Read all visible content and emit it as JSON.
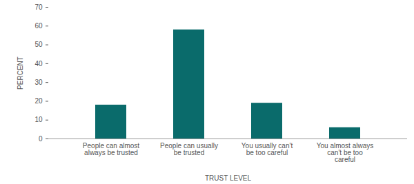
{
  "chart_data": {
    "type": "bar",
    "categories": [
      "People can almost always be trusted",
      "People can usually be trusted",
      "You usually can't be too careful",
      "You almost always can't be too careful"
    ],
    "values": [
      18,
      58,
      19,
      6
    ],
    "color": "#0a6b6b",
    "xlabel": "TRUST LEVEL",
    "ylabel": "PERCENT",
    "ylim": [
      0,
      70
    ],
    "yticks": [
      0,
      10,
      20,
      30,
      40,
      50,
      60,
      70
    ],
    "grid": true
  }
}
